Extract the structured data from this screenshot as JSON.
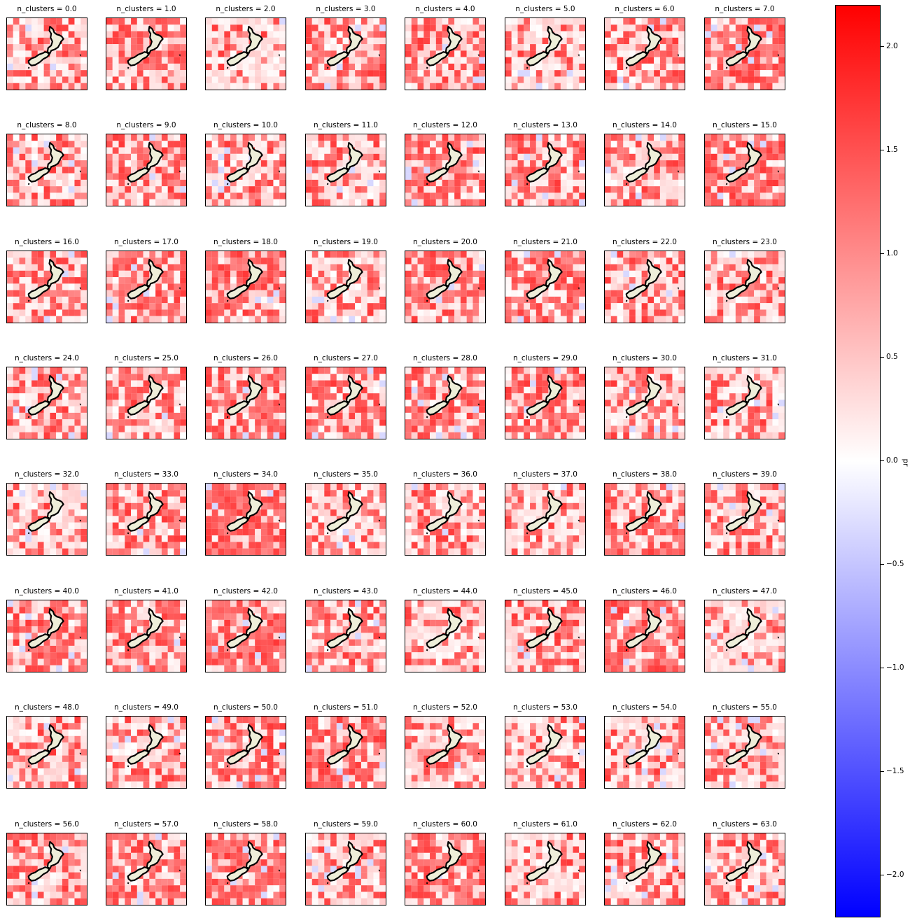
{
  "chart_data": {
    "type": "heatmap",
    "title": "",
    "panel_title_prefix": "n_clusters = ",
    "panels": [
      "0.0",
      "1.0",
      "2.0",
      "3.0",
      "4.0",
      "5.0",
      "6.0",
      "7.0",
      "8.0",
      "9.0",
      "10.0",
      "11.0",
      "12.0",
      "13.0",
      "14.0",
      "15.0",
      "16.0",
      "17.0",
      "18.0",
      "19.0",
      "20.0",
      "21.0",
      "22.0",
      "23.0",
      "24.0",
      "25.0",
      "26.0",
      "27.0",
      "28.0",
      "29.0",
      "30.0",
      "31.0",
      "32.0",
      "33.0",
      "34.0",
      "35.0",
      "36.0",
      "37.0",
      "38.0",
      "39.0",
      "40.0",
      "41.0",
      "42.0",
      "43.0",
      "44.0",
      "45.0",
      "46.0",
      "47.0",
      "48.0",
      "49.0",
      "50.0",
      "51.0",
      "52.0",
      "53.0",
      "54.0",
      "55.0",
      "56.0",
      "57.0",
      "58.0",
      "59.0",
      "60.0",
      "61.0",
      "62.0",
      "63.0"
    ],
    "panel_intensity": [
      0.45,
      0.7,
      0.25,
      0.7,
      0.55,
      0.3,
      0.55,
      0.85,
      0.5,
      0.6,
      0.45,
      0.5,
      0.8,
      0.65,
      0.5,
      0.85,
      0.6,
      0.75,
      0.75,
      0.45,
      0.7,
      0.85,
      0.55,
      0.6,
      0.5,
      0.6,
      0.7,
      0.55,
      0.75,
      0.6,
      0.5,
      0.4,
      0.3,
      0.6,
      0.9,
      0.45,
      0.4,
      0.4,
      0.7,
      0.55,
      0.65,
      0.7,
      0.7,
      0.6,
      0.5,
      0.55,
      0.7,
      0.35,
      0.4,
      0.55,
      0.7,
      0.85,
      0.45,
      0.45,
      0.45,
      0.55,
      0.6,
      0.65,
      0.75,
      0.45,
      0.8,
      0.35,
      0.5,
      0.45
    ],
    "colorbar": {
      "colormap": "bwr",
      "vmin": -2.2,
      "vmax": 2.2,
      "ticks": [
        "2.0",
        "1.5",
        "1.0",
        "0.5",
        "0.0",
        "−0.5",
        "−1.0",
        "−1.5",
        "−2.0"
      ],
      "tick_values": [
        2.0,
        1.5,
        1.0,
        0.5,
        0.0,
        -0.5,
        -1.0,
        -1.5,
        -2.0
      ],
      "label": "pr"
    },
    "colors": {
      "high": "#ff0000",
      "mid": "#ffffff",
      "low": "#0000ff",
      "land": "#eeeed9",
      "coast": "#000000"
    }
  }
}
